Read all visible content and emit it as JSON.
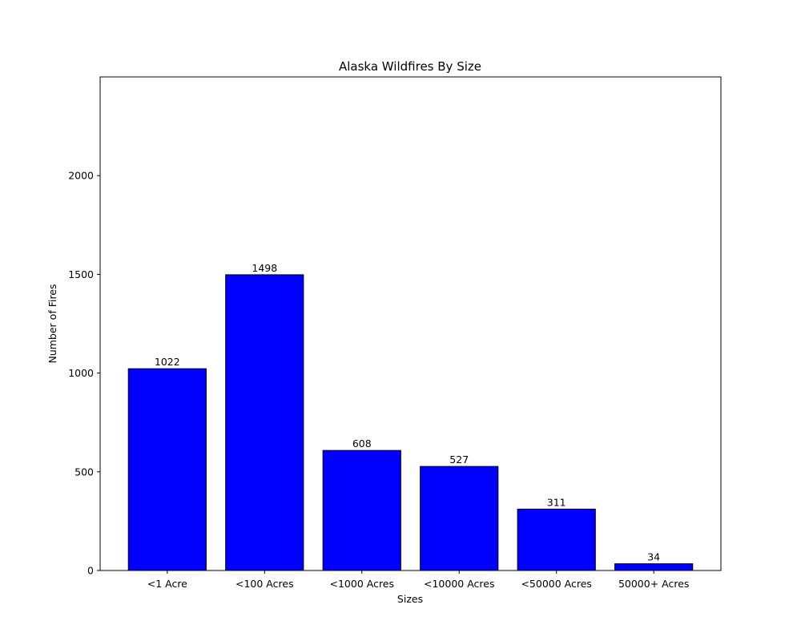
{
  "chart_data": {
    "type": "bar",
    "title": "Alaska Wildfires By Size",
    "xlabel": "Sizes",
    "ylabel": "Number of Fires",
    "categories": [
      "<1 Acre",
      "<100 Acres",
      "<1000 Acres",
      "<10000 Acres",
      "<50000 Acres",
      "50000+ Acres"
    ],
    "values": [
      1022,
      1498,
      608,
      527,
      311,
      34
    ],
    "ylim": [
      0,
      2500
    ],
    "yticks": [
      0,
      500,
      1000,
      1500,
      2000
    ],
    "grid": false,
    "bar_color": "#0000ff",
    "bar_edge_color": "#000000",
    "data_labels": true
  }
}
